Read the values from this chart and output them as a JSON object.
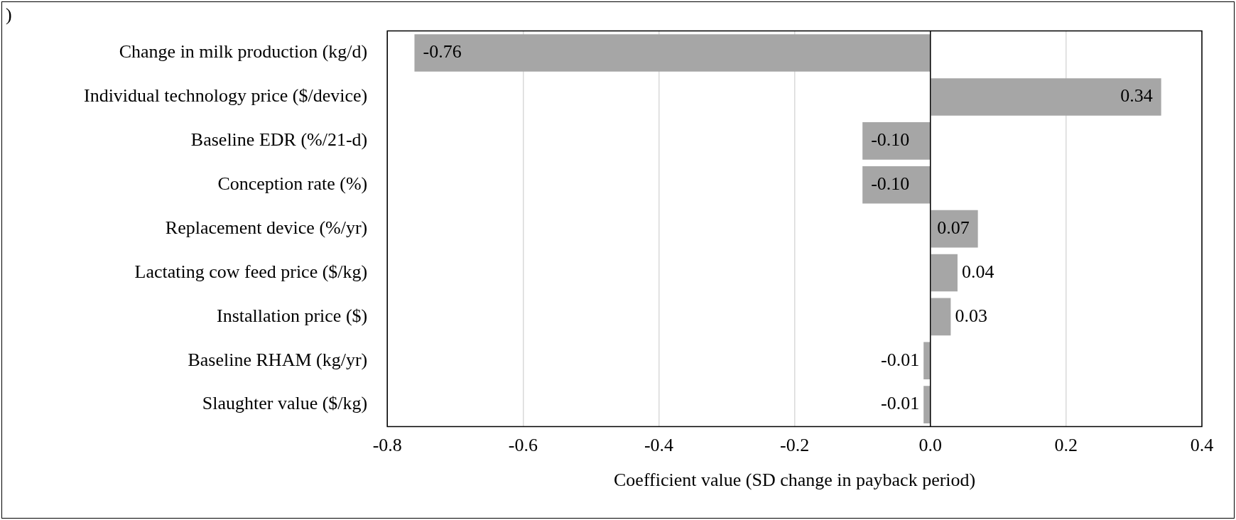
{
  "chart_data": {
    "type": "bar",
    "orientation": "horizontal",
    "xlabel": "Coefficient value (SD change in payback period)",
    "annotations": [
      ")"
    ],
    "categories": [
      "Change in milk production (kg/d)",
      "Individual technology price ($/device)",
      "Baseline EDR (%/21-d)",
      "Conception rate (%)",
      "Replacement device (%/yr)",
      "Lactating cow feed price ($/kg)",
      "Installation price ($)",
      "Baseline RHAM (kg/yr)",
      "Slaughter value ($/kg)"
    ],
    "values": [
      -0.76,
      0.34,
      -0.1,
      -0.1,
      0.07,
      0.04,
      0.03,
      -0.01,
      -0.01
    ],
    "value_labels": [
      "-0.76",
      "0.34",
      "-0.10",
      "-0.10",
      "0.07",
      "0.04",
      "0.03",
      "-0.01",
      "-0.01"
    ],
    "color": "#a6a6a6",
    "xlim": [
      -0.8,
      0.4
    ],
    "xticks": [
      {
        "value": -0.8,
        "label": "-0.8"
      },
      {
        "value": -0.6,
        "label": "-0.6"
      },
      {
        "value": -0.4,
        "label": "-0.4"
      },
      {
        "value": -0.2,
        "label": "-0.2"
      },
      {
        "value": 0,
        "label": "0.0"
      },
      {
        "value": 0.2,
        "label": "0.2"
      },
      {
        "value": 0.4,
        "label": "0.4"
      }
    ],
    "grid": "x",
    "legend": false
  }
}
